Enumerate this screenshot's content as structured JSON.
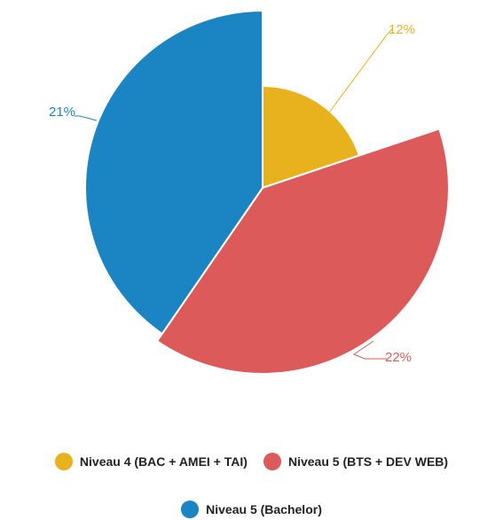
{
  "chart_data": {
    "type": "pie",
    "title": "",
    "series": [
      {
        "name": "Niveau 4 (BAC + AMEI + TAI)",
        "value": 12,
        "label": "12%",
        "color": "#E8B11E"
      },
      {
        "name": "Niveau 5 (BTS + DEV WEB)",
        "value": 22,
        "label": "22%",
        "color": "#DC5A5A"
      },
      {
        "name": "Niveau 5 (Bachelor)",
        "value": 21,
        "label": "21%",
        "color": "#1B84C2"
      }
    ],
    "legend_position": "bottom"
  }
}
